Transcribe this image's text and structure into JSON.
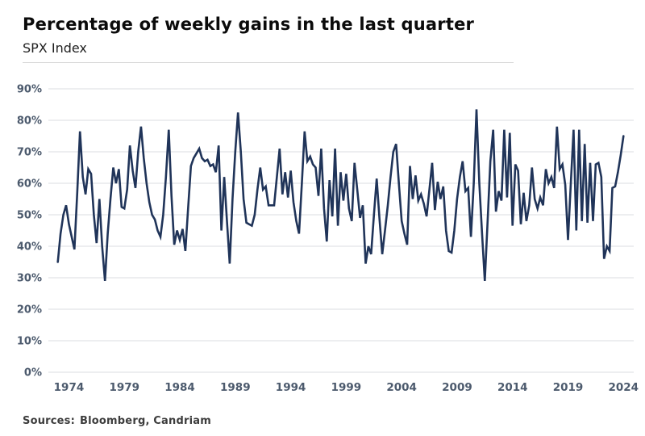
{
  "header": {
    "title": "Percentage of weekly gains in the last quarter",
    "subtitle": "SPX Index"
  },
  "footer": {
    "sources_label": "Sources:",
    "sources_value": "Bloomberg, Candriam"
  },
  "colors": {
    "line": "#203459",
    "tick_label": "#4c5a6d",
    "gridline": "#dbdee2",
    "title": "#0b0b0b",
    "source_text": "#3d3d3d"
  },
  "chart_data": {
    "type": "line",
    "title": "Percentage of weekly gains in the last quarter",
    "subtitle": "SPX Index",
    "frequency": "quarterly",
    "start_year": 1973,
    "start_quarter": 1,
    "xlabel": "",
    "ylabel": "",
    "ylim": [
      0,
      90
    ],
    "y_tick_step": 10,
    "y_tick_labels": [
      "0%",
      "10%",
      "20%",
      "30%",
      "40%",
      "50%",
      "60%",
      "70%",
      "80%",
      "90%"
    ],
    "x_tick_labels": [
      "1974",
      "1979",
      "1984",
      "1989",
      "1994",
      "1999",
      "2004",
      "2009",
      "2014",
      "2019",
      "2024"
    ],
    "x_tick_indices": [
      4,
      24,
      44,
      64,
      84,
      104,
      124,
      144,
      164,
      184,
      204
    ],
    "grid": "horizontal",
    "legend": "none",
    "values": [
      35,
      44,
      50,
      53,
      47,
      43,
      39,
      57,
      76.5,
      62,
      56.5,
      64.5,
      63,
      50,
      41,
      55,
      40,
      29,
      44,
      55,
      65,
      60,
      64.5,
      52.5,
      52,
      58,
      72,
      64,
      58.5,
      70,
      78,
      68,
      60,
      54,
      50,
      48.5,
      45,
      43,
      50,
      62,
      77,
      56,
      40.5,
      45,
      42,
      45.5,
      38.5,
      52,
      65.5,
      68,
      69.5,
      71,
      68,
      67,
      67.5,
      65.5,
      66,
      63.5,
      72,
      45,
      62,
      48,
      34.5,
      55,
      70,
      82.5,
      70,
      55,
      47.5,
      47,
      46.5,
      50,
      58,
      65,
      58,
      59,
      53,
      53,
      53,
      62,
      71,
      56.5,
      63.5,
      55.5,
      64,
      54,
      48,
      44,
      60,
      76.5,
      67,
      68.5,
      66,
      65,
      56,
      71,
      52,
      41.5,
      61,
      49.5,
      71,
      46.5,
      63.5,
      54.5,
      63,
      52,
      48,
      66.5,
      58,
      49,
      53,
      34.5,
      40,
      37.5,
      50,
      61.5,
      49,
      37.5,
      45,
      53,
      62,
      70,
      72.5,
      60,
      48,
      44,
      40.5,
      65.5,
      55,
      62.5,
      54.5,
      56.5,
      53.5,
      49.5,
      58,
      66.5,
      51.5,
      60.5,
      55,
      59,
      45,
      38.5,
      38,
      45,
      55,
      62,
      67,
      57.5,
      58.5,
      43,
      60,
      83.5,
      60,
      44,
      29,
      48,
      67,
      77,
      51,
      57.5,
      54.5,
      77,
      55.5,
      76,
      46.5,
      66,
      64,
      47,
      57,
      48,
      53,
      65,
      55,
      52,
      55.5,
      53,
      64.5,
      60,
      62,
      58.5,
      78,
      64.5,
      66,
      59.5,
      42,
      60,
      77,
      45,
      77,
      48,
      72.5,
      47.5,
      66.5,
      48,
      66,
      66.5,
      62,
      36,
      40,
      38.5,
      58.5,
      59,
      63.5,
      69,
      75
    ]
  }
}
